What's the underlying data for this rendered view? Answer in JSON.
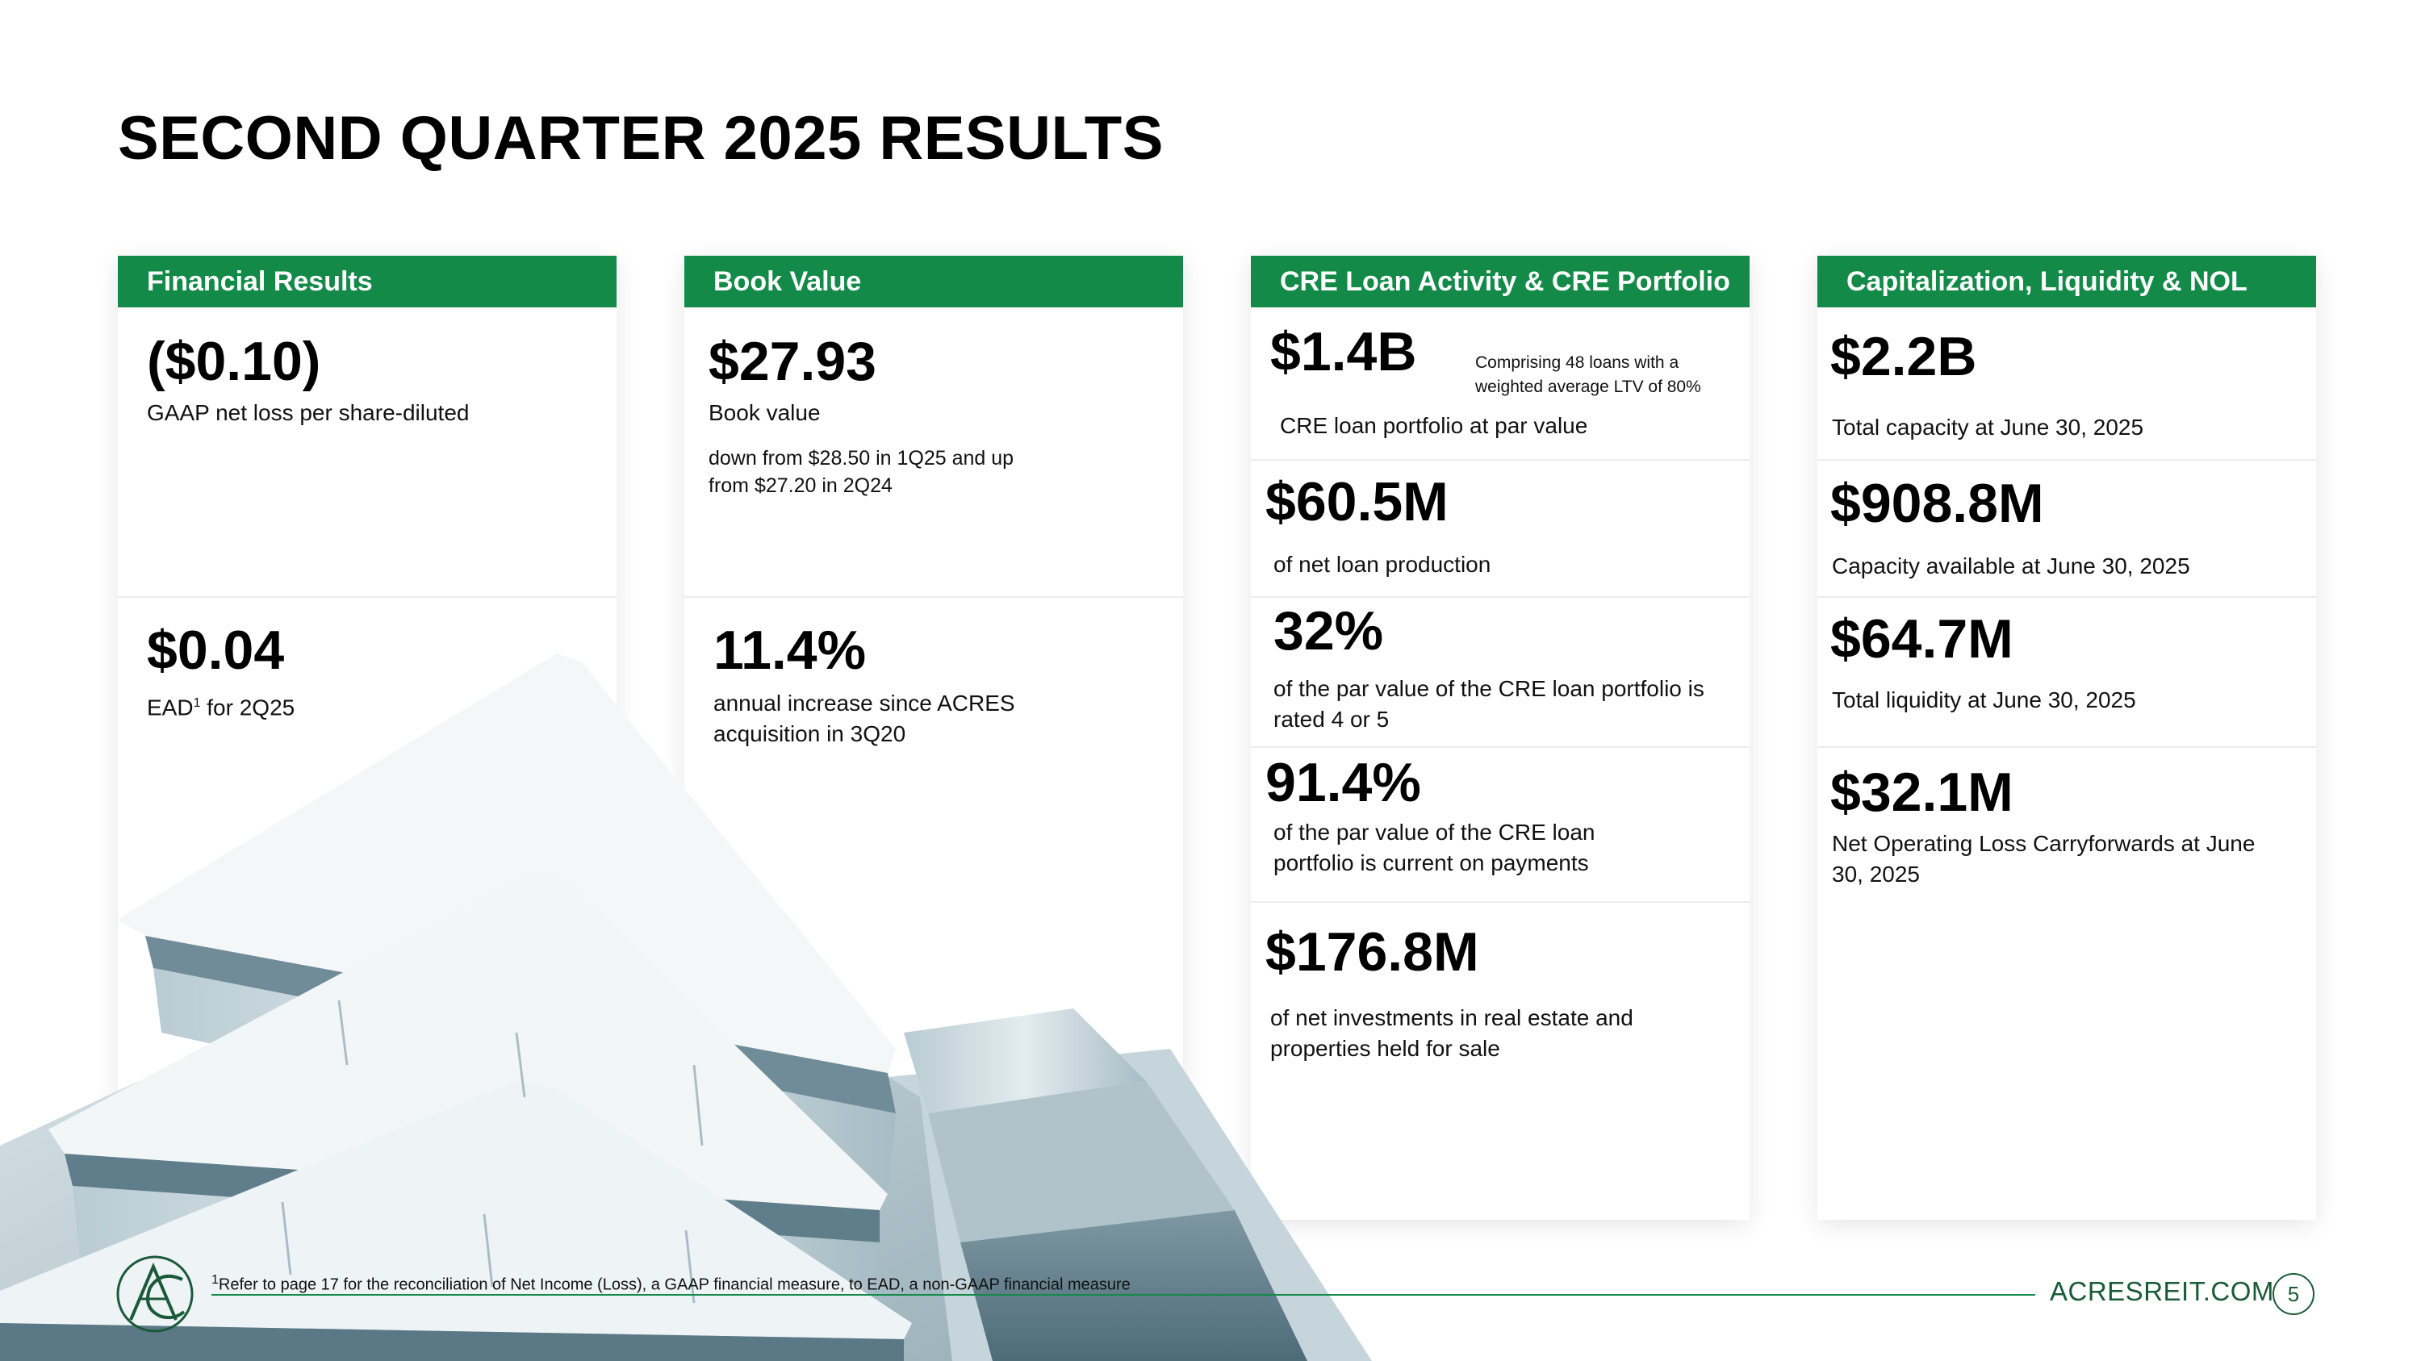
{
  "page": {
    "title": "SECOND QUARTER 2025 RESULTS",
    "accent_color": "#138a48"
  },
  "financial": {
    "header": "Financial Results",
    "m1_value": "($0.10)",
    "m1_label": "GAAP net loss per share-diluted",
    "m2_value": "$0.04",
    "m2_label_prefix": "EAD",
    "m2_label_sup": "1",
    "m2_label_suffix": " for 2Q25"
  },
  "book": {
    "header": "Book Value",
    "m1_value": "$27.93",
    "m1_label": "Book value",
    "m1_note": "down from $28.50 in 1Q25 and up from $27.20 in 2Q24",
    "m2_value": "11.4%",
    "m2_label": "annual increase since ACRES acquisition in 3Q20"
  },
  "cre": {
    "header": "CRE Loan Activity & CRE Portfolio",
    "m1_value": "$1.4B",
    "m1_note": "Comprising 48 loans with a weighted average LTV of 80%",
    "m1_label": "CRE loan portfolio at par value",
    "m2_value": "$60.5M",
    "m2_label": "of net loan production",
    "m3_value": "32%",
    "m3_label": "of the par value of the CRE loan portfolio is rated 4 or 5",
    "m4_value": "91.4%",
    "m4_label": "of the par value of the CRE loan portfolio is current on payments",
    "m5_value": "$176.8M",
    "m5_label": "of net investments in real estate and properties held for sale"
  },
  "cap": {
    "header": "Capitalization, Liquidity & NOL",
    "m1_value": "$2.2B",
    "m1_label": "Total capacity at June 30, 2025",
    "m2_value": "$908.8M",
    "m2_label": "Capacity available at June 30, 2025",
    "m3_value": "$64.7M",
    "m3_label": "Total liquidity at June 30, 2025",
    "m4_value": "$32.1M",
    "m4_label": "Net Operating Loss Carryforwards at June 30, 2025"
  },
  "footer": {
    "footnote_sup": "1",
    "footnote": "Refer to page 17 for the reconciliation of Net Income (Loss), a GAAP financial measure, to EAD, a non-GAAP financial measure",
    "website": "ACRESREIT.COM",
    "page_number": "5",
    "logo_icon": "acres-logo-icon",
    "building_image": "building-photo"
  }
}
